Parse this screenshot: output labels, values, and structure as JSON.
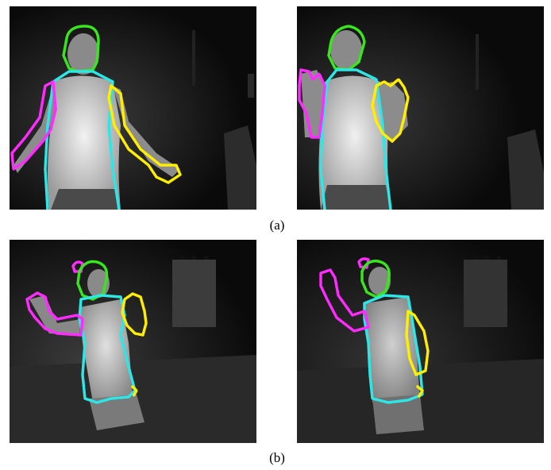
{
  "captions": {
    "a": "(a)",
    "b": "(b)"
  },
  "colors": {
    "head": "#39e61e",
    "torso": "#2ee6e6",
    "left_arm": "#ff2bff",
    "right_arm": "#ffee00",
    "background": "#0d0d0d"
  },
  "panels": [
    {
      "row": "a",
      "subject": "man-arms-down"
    },
    {
      "row": "a",
      "subject": "man-hands-raised"
    },
    {
      "row": "b",
      "subject": "woman-arms-raised"
    },
    {
      "row": "b",
      "subject": "woman-arms-raised-closer"
    }
  ]
}
